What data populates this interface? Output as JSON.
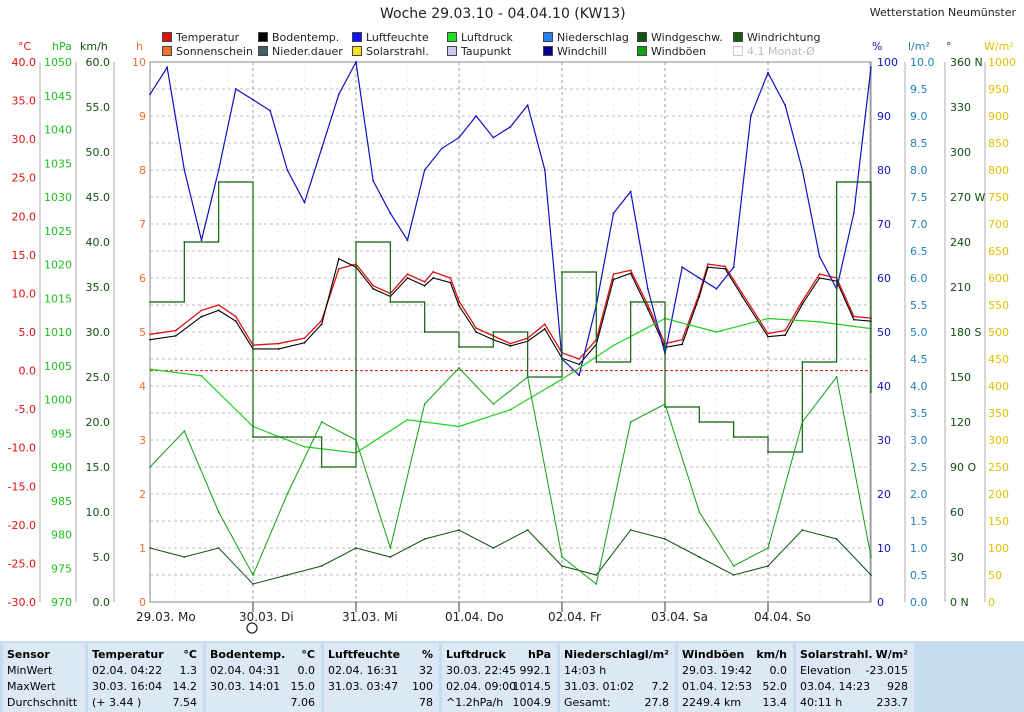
{
  "title": "Woche 29.03.10 - 04.04.10 (KW13)",
  "station": "Wetterstation Neumünster",
  "legend": [
    {
      "label": "Temperatur",
      "color": "#e01010"
    },
    {
      "label": "Bodentemp.",
      "color": "#000000"
    },
    {
      "label": "Luftfeuchte",
      "color": "#1010ff"
    },
    {
      "label": "Luftdruck",
      "color": "#20e020"
    },
    {
      "label": "Niederschlag",
      "color": "#2080ff"
    },
    {
      "label": "Windgeschw.",
      "color": "#105010"
    },
    {
      "label": "Windrichtung",
      "color": "#106010"
    },
    {
      "label": "Sonnenschein",
      "color": "#f07030"
    },
    {
      "label": "Nieder.dauer",
      "color": "#406060"
    },
    {
      "label": "Solarstrahl.",
      "color": "#ffe020"
    },
    {
      "label": "Taupunkt",
      "color": "#c8c8f0"
    },
    {
      "label": "Windchill",
      "color": "#000090"
    },
    {
      "label": "Windböen",
      "color": "#10a010"
    },
    {
      "label": "4.1 Monat-Ø",
      "color": "#ffffff"
    }
  ],
  "axes": {
    "temp": {
      "unit": "°C",
      "color": "#e01010",
      "ticks": [
        "40.0",
        "35.0",
        "30.0",
        "25.0",
        "20.0",
        "15.0",
        "10.0",
        "5.0",
        "0.0",
        "-5.0",
        "-10.0",
        "-15.0",
        "-20.0",
        "-25.0",
        "-30.0"
      ]
    },
    "press": {
      "unit": "hPa",
      "color": "#20c020",
      "ticks": [
        "1050",
        "1045",
        "1040",
        "1035",
        "1030",
        "1025",
        "1020",
        "1015",
        "1010",
        "1005",
        "1000",
        "995",
        "990",
        "985",
        "980",
        "975",
        "970"
      ]
    },
    "wind": {
      "unit": "km/h",
      "color": "#105010",
      "ticks": [
        "60.0",
        "55.0",
        "50.0",
        "45.0",
        "40.0",
        "35.0",
        "30.0",
        "25.0",
        "20.0",
        "15.0",
        "10.0",
        "5.0",
        "0.0"
      ]
    },
    "sun": {
      "unit": "h",
      "color": "#f07030",
      "ticks": [
        "10",
        "9",
        "8",
        "7",
        "6",
        "5",
        "4",
        "3",
        "2",
        "1",
        "0"
      ]
    },
    "hum": {
      "unit": "%",
      "color": "#1010c0",
      "ticks": [
        "100",
        "90",
        "80",
        "70",
        "60",
        "50",
        "40",
        "30",
        "20",
        "10",
        "0"
      ]
    },
    "rain": {
      "unit": "l/m²",
      "color": "#2080c0",
      "ticks": [
        "10.0",
        "9.5",
        "9.0",
        "8.5",
        "8.0",
        "7.5",
        "7.0",
        "6.5",
        "6.0",
        "5.5",
        "5.0",
        "4.5",
        "4.0",
        "3.5",
        "3.0",
        "2.5",
        "2.0",
        "1.5",
        "1.0",
        "0.5",
        "0.0"
      ]
    },
    "dir": {
      "unit": "°",
      "color": "#105010",
      "ticks": [
        "360 N",
        "330",
        "300",
        "270 W",
        "240",
        "210",
        "180 S",
        "150",
        "120",
        "90 O",
        "60",
        "30",
        "0 N"
      ]
    },
    "solar": {
      "unit": "W/m²",
      "color": "#e0c000",
      "ticks": [
        "1000",
        "950",
        "900",
        "850",
        "800",
        "750",
        "700",
        "650",
        "600",
        "550",
        "500",
        "450",
        "400",
        "350",
        "300",
        "250",
        "200",
        "150",
        "100",
        "50",
        "0"
      ]
    }
  },
  "days": [
    "29.03. Mo",
    "30.03. Di",
    "31.03. Mi",
    "01.04. Do",
    "02.04. Fr",
    "03.04. Sa",
    "04.04. So"
  ],
  "chart_data": {
    "type": "line",
    "title": "Woche 29.03.10 - 04.04.10 (KW13)",
    "x_unit": "hours since 29.03.10 00:00",
    "series": [
      {
        "name": "Temperatur",
        "unit": "°C",
        "x": [
          0,
          6,
          12,
          16,
          20,
          24,
          30,
          36,
          40,
          44,
          48,
          52,
          56,
          60,
          64,
          66,
          70,
          72,
          76,
          80,
          84,
          88,
          92,
          96,
          100,
          104,
          108,
          112,
          116,
          120,
          124,
          128,
          130,
          134,
          138,
          144,
          148,
          152,
          156,
          160,
          164,
          168
        ],
        "values": [
          4.7,
          5.2,
          7.8,
          8.5,
          7,
          3.3,
          3.5,
          4.2,
          6.5,
          13.2,
          13.8,
          11,
          10,
          12.5,
          11.5,
          12.8,
          12,
          9,
          5.5,
          4.5,
          3.5,
          4.2,
          6,
          2.3,
          1.5,
          4,
          12.5,
          13,
          8.5,
          3.5,
          4,
          10,
          13.8,
          13.5,
          10,
          4.8,
          5.2,
          9,
          12.5,
          12,
          7,
          6.8
        ]
      },
      {
        "name": "Bodentemp.",
        "unit": "°C",
        "x": [
          0,
          6,
          12,
          16,
          20,
          24,
          30,
          36,
          40,
          44,
          48,
          52,
          56,
          60,
          64,
          66,
          70,
          72,
          76,
          80,
          84,
          88,
          92,
          96,
          100,
          104,
          108,
          112,
          116,
          120,
          124,
          128,
          130,
          134,
          138,
          144,
          148,
          152,
          156,
          160,
          164,
          168
        ],
        "values": [
          4,
          4.5,
          7,
          7.8,
          6.4,
          2.8,
          2.8,
          3.6,
          6,
          14.5,
          13.4,
          10.6,
          9.6,
          12,
          11,
          12,
          11.4,
          8.4,
          5,
          4,
          3.2,
          3.8,
          5.4,
          1.6,
          0.8,
          3.4,
          11.8,
          12.6,
          8,
          3,
          3.4,
          9.6,
          13.4,
          13.2,
          9.6,
          4.4,
          4.6,
          8.6,
          12,
          11.6,
          6.6,
          6.4
        ]
      },
      {
        "name": "Luftfeuchte",
        "unit": "%",
        "x": [
          0,
          4,
          8,
          12,
          16,
          20,
          24,
          28,
          32,
          36,
          40,
          44,
          48,
          52,
          56,
          60,
          64,
          68,
          72,
          76,
          80,
          84,
          88,
          92,
          96,
          100,
          104,
          108,
          112,
          116,
          120,
          124,
          128,
          132,
          136,
          140,
          144,
          148,
          152,
          156,
          160,
          164,
          168
        ],
        "values": [
          94,
          99,
          80,
          67,
          80,
          95,
          93,
          91,
          80,
          74,
          84,
          94,
          100,
          78,
          72,
          67,
          80,
          84,
          86,
          90,
          86,
          88,
          92,
          80,
          45,
          42,
          55,
          72,
          76,
          58,
          46,
          62,
          60,
          58,
          62,
          90,
          98,
          92,
          80,
          64,
          58,
          72,
          99
        ]
      },
      {
        "name": "Luftdruck",
        "unit": "hPa",
        "x": [
          0,
          12,
          24,
          36,
          48,
          60,
          72,
          84,
          96,
          108,
          120,
          132,
          144,
          156,
          168
        ],
        "values": [
          1004.5,
          1003.5,
          996,
          993,
          992.1,
          997,
          996,
          998.5,
          1003,
          1008,
          1012,
          1010,
          1012,
          1011.5,
          1010.5
        ]
      },
      {
        "name": "Windrichtung",
        "unit": "°",
        "x": [
          0,
          8,
          16,
          24,
          32,
          40,
          48,
          56,
          64,
          72,
          80,
          88,
          96,
          104,
          112,
          120,
          128,
          136,
          144,
          152,
          160,
          168
        ],
        "values": [
          200,
          240,
          280,
          110,
          110,
          90,
          240,
          200,
          180,
          170,
          180,
          150,
          220,
          160,
          200,
          130,
          120,
          110,
          100,
          160,
          280,
          140
        ]
      },
      {
        "name": "Windgeschw.",
        "unit": "km/h",
        "x": [
          0,
          8,
          16,
          24,
          32,
          40,
          48,
          56,
          64,
          72,
          80,
          88,
          96,
          104,
          112,
          120,
          128,
          136,
          144,
          152,
          160,
          168
        ],
        "values": [
          6,
          5,
          6,
          2,
          3,
          4,
          6,
          5,
          7,
          8,
          6,
          8,
          4,
          3,
          8,
          7,
          5,
          3,
          4,
          8,
          7,
          3
        ]
      },
      {
        "name": "Windböen",
        "unit": "km/h",
        "x": [
          0,
          8,
          16,
          24,
          32,
          40,
          48,
          56,
          64,
          72,
          80,
          88,
          96,
          104,
          112,
          120,
          128,
          136,
          144,
          152,
          160,
          168
        ],
        "values": [
          15,
          19,
          10,
          3,
          12,
          20,
          18,
          6,
          22,
          26,
          22,
          25,
          5,
          2,
          20,
          22,
          10,
          4,
          6,
          20,
          25,
          5
        ]
      }
    ]
  },
  "table": [
    {
      "header": [
        "Sensor",
        ""
      ],
      "rows": [
        [
          "MinWert",
          ""
        ],
        [
          "MaxWert",
          ""
        ],
        [
          "Durchschnitt",
          ""
        ]
      ]
    },
    {
      "header": [
        "Temperatur",
        "°C"
      ],
      "rows": [
        [
          "02.04.  04:22",
          "1.3"
        ],
        [
          "30.03.  16:04",
          "14.2"
        ],
        [
          "(+ 3.44 )",
          "7.54"
        ]
      ]
    },
    {
      "header": [
        "Bodentemp.",
        "°C"
      ],
      "rows": [
        [
          "02.04.  04:31",
          "0.0"
        ],
        [
          "30.03.  14:01",
          "15.0"
        ],
        [
          "",
          "7.06"
        ]
      ]
    },
    {
      "header": [
        "Luftfeuchte",
        "%"
      ],
      "rows": [
        [
          "02.04.  16:31",
          "32"
        ],
        [
          "31.03.  03:47",
          "100"
        ],
        [
          "",
          "78"
        ]
      ]
    },
    {
      "header": [
        "Luftdruck",
        "hPa"
      ],
      "rows": [
        [
          "30.03.  22:45",
          "992.1"
        ],
        [
          "02.04.  09:00",
          "1014.5"
        ],
        [
          "^1.2hPa/h",
          "1004.9"
        ]
      ]
    },
    {
      "header": [
        "Niederschlag",
        "l/m²"
      ],
      "rows": [
        [
          "14:03 h",
          ""
        ],
        [
          "31.03.  01:02",
          "7.2"
        ],
        [
          "Gesamt:",
          "27.8"
        ]
      ]
    },
    {
      "header": [
        "Windböen",
        "km/h"
      ],
      "rows": [
        [
          "29.03.  19:42",
          "0.0"
        ],
        [
          "01.04.  12:53",
          "52.0"
        ],
        [
          "2249.4 km",
          "13.4"
        ]
      ]
    },
    {
      "header": [
        "Solarstrahl.",
        "W/m²"
      ],
      "rows": [
        [
          "Elevation",
          "-23.015"
        ],
        [
          "03.04.  14:23",
          "928"
        ],
        [
          "40:11 h",
          "233.7"
        ]
      ]
    }
  ]
}
